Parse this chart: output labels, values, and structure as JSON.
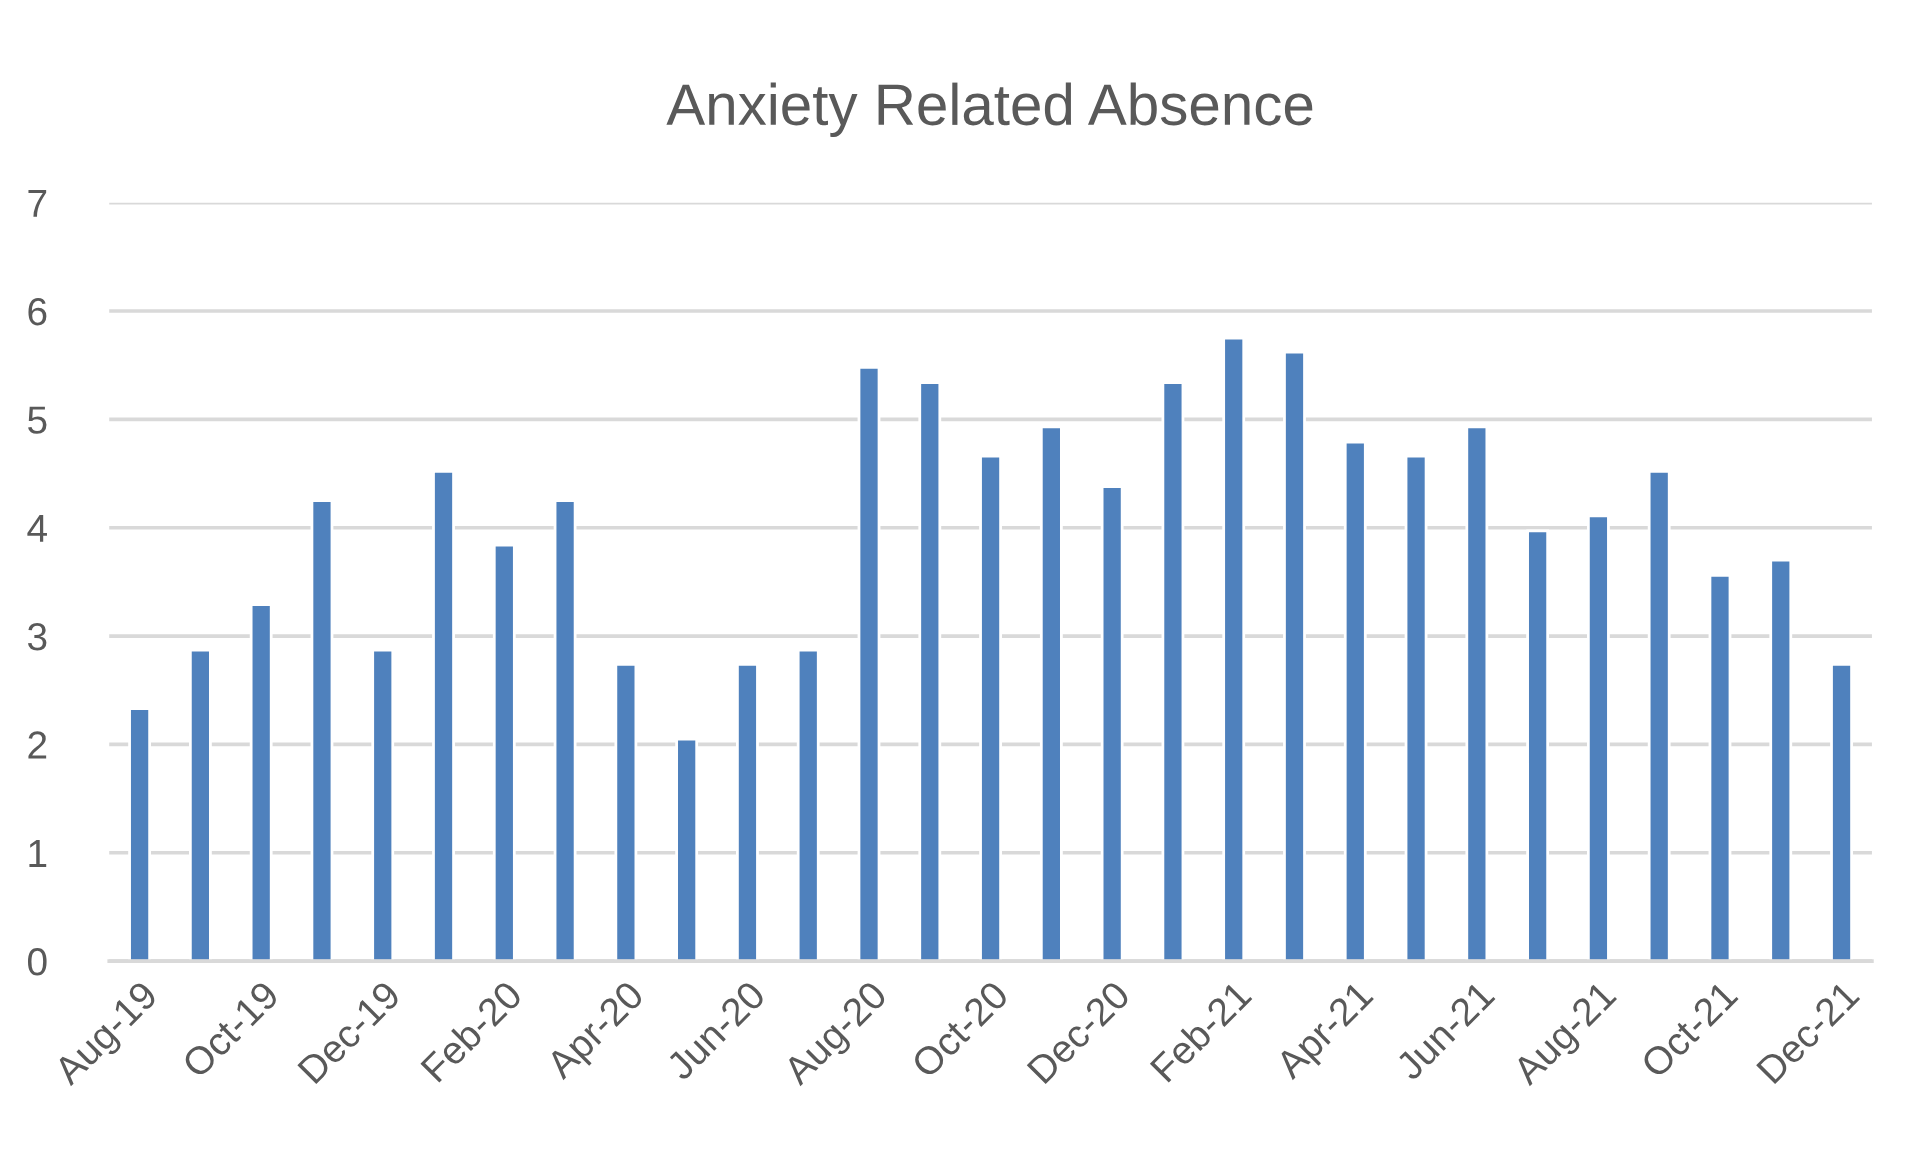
{
  "chart_data": {
    "type": "bar",
    "title": "Anxiety Related Absence",
    "categories": [
      "Aug-19",
      null,
      "Oct-19",
      null,
      "Dec-19",
      null,
      "Feb-20",
      null,
      "Apr-20",
      null,
      "Jun-20",
      null,
      "Aug-20",
      null,
      "Oct-20",
      null,
      "Dec-20",
      null,
      "Feb-21",
      null,
      "Apr-21",
      null,
      "Jun-21",
      null,
      "Aug-21",
      null,
      "Oct-21",
      null,
      "Dec-21"
    ],
    "values": [
      2.33,
      2.87,
      3.29,
      4.25,
      2.87,
      4.52,
      3.84,
      4.25,
      2.74,
      2.05,
      2.74,
      2.87,
      5.48,
      5.34,
      4.66,
      4.93,
      4.38,
      5.34,
      5.75,
      5.62,
      4.79,
      4.66,
      4.93,
      3.97,
      4.11,
      4.52,
      3.56,
      3.7,
      2.74
    ],
    "color": "#4f81bd",
    "ylim": [
      0,
      7
    ],
    "yticks": [
      0,
      1,
      2,
      3,
      4,
      5,
      6,
      7
    ],
    "grid": "y"
  }
}
